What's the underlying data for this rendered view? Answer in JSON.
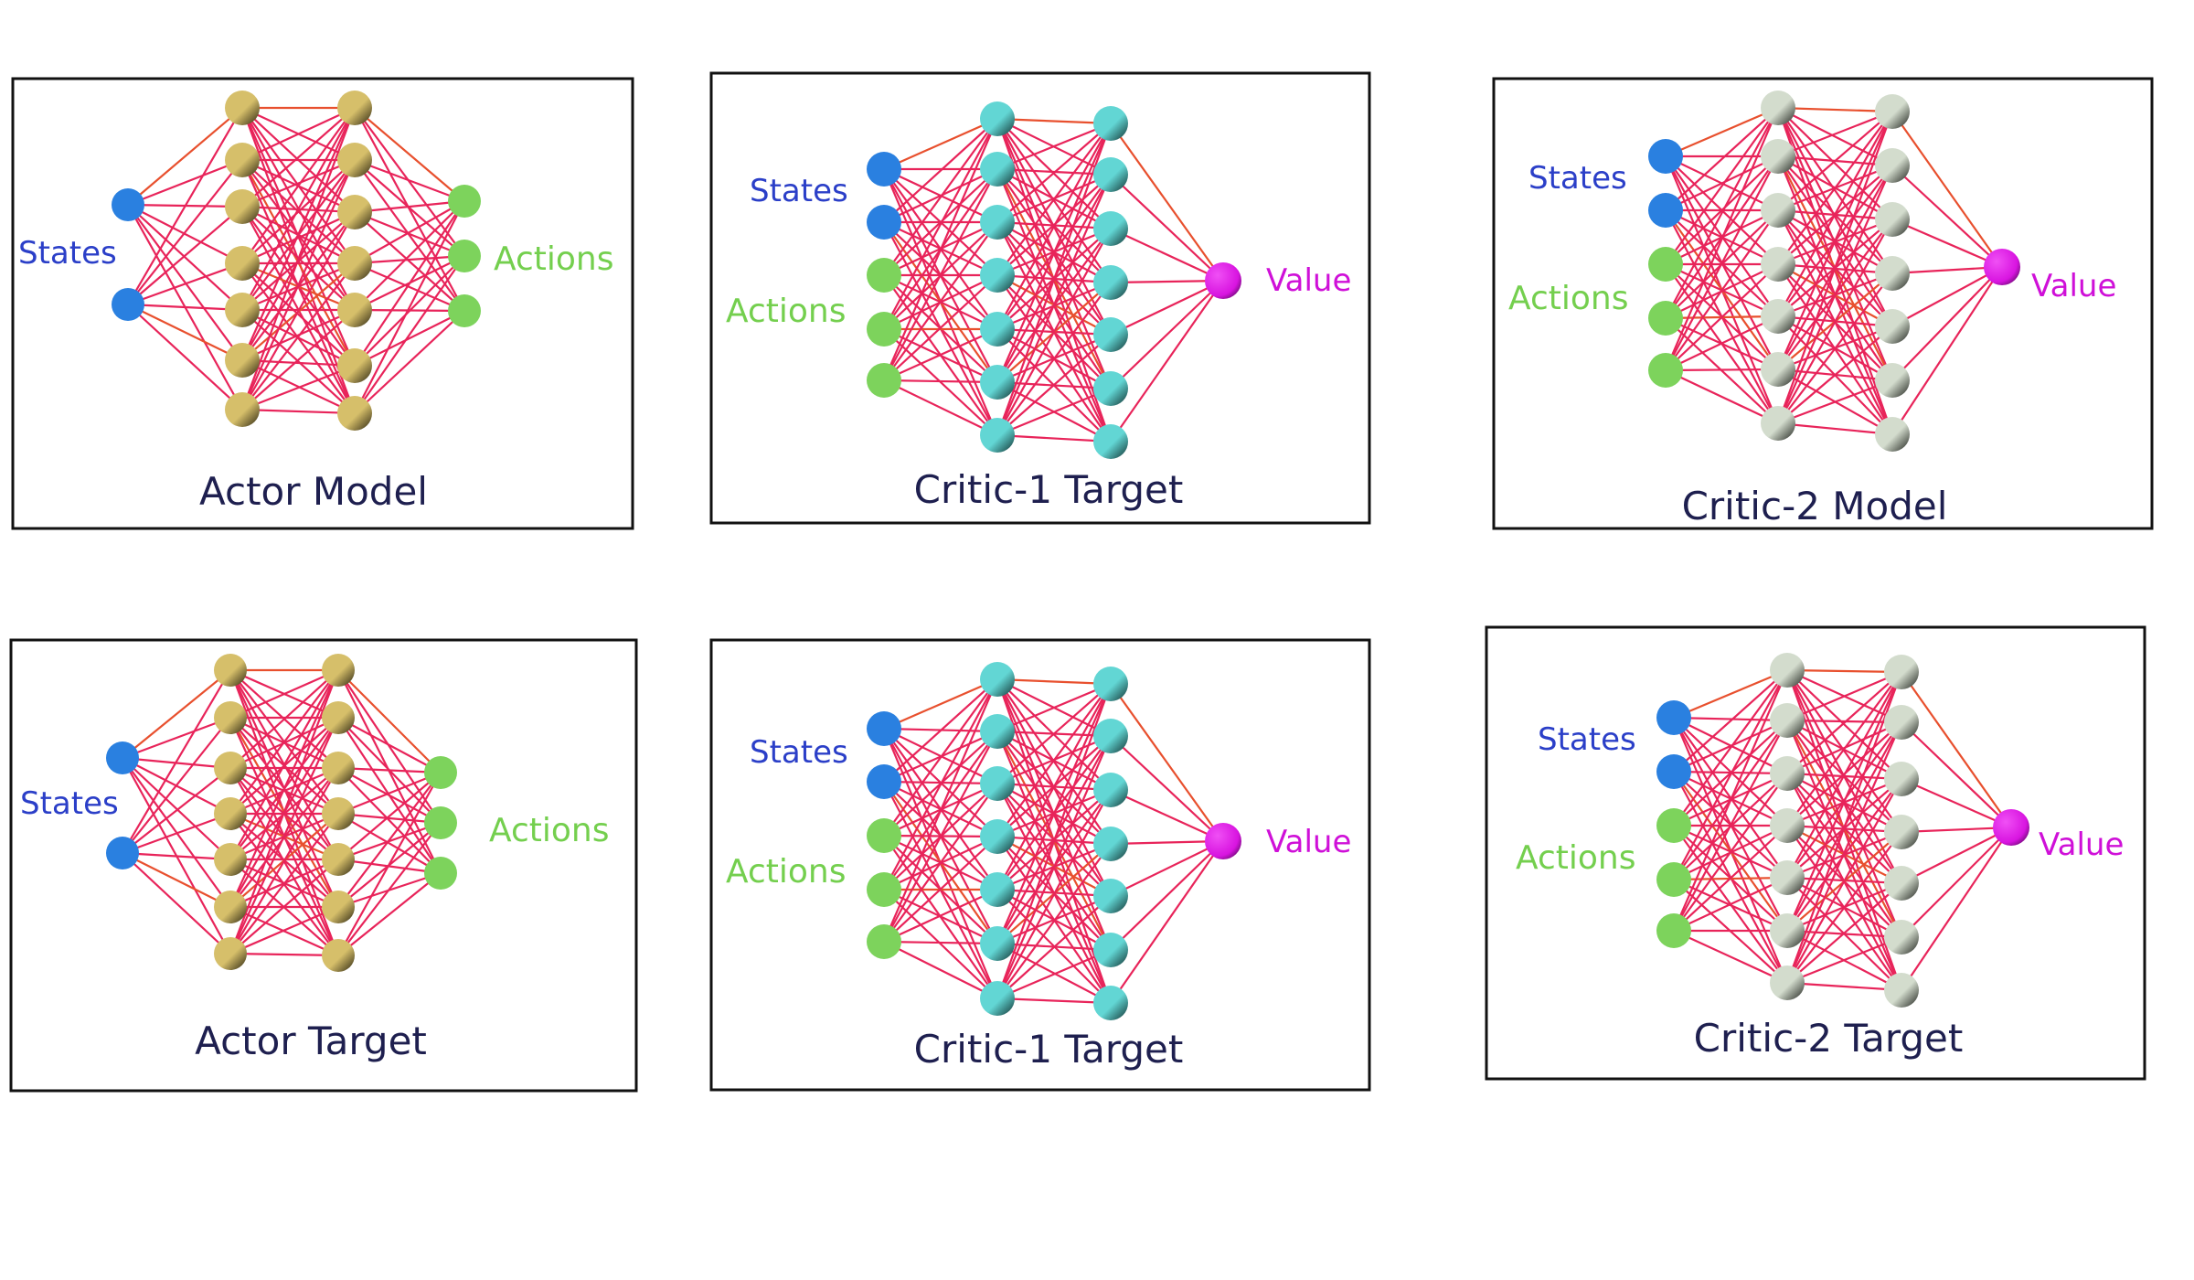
{
  "colors": {
    "frame": "#111111",
    "edge": "#e8245a",
    "edge_alt": "#e8502e",
    "state_node": "#2a80e0",
    "action_node": "#7dd35c",
    "value_node": "#d814e0",
    "title_text": "#1e1f4f",
    "states_text": "#2b3fc8",
    "actions_text": "#74cf4e",
    "value_text": "#cf10d8",
    "actor_hidden": "#d6bf6a",
    "critic1_hidden": "#62d6d4",
    "critic2_hidden": "#d3dccd"
  },
  "panels": [
    {
      "title": "Actor Model",
      "type": "actor",
      "labels": {
        "states": "States",
        "actions": "Actions"
      },
      "layers": {
        "inputs": [
          "state",
          "state"
        ],
        "hidden1": 7,
        "hidden2": 7,
        "outputs": 3
      }
    },
    {
      "title": "Critic-1  Target",
      "type": "critic",
      "labels": {
        "states": "States",
        "actions": "Actions",
        "value": "Value"
      },
      "layers": {
        "inputs": [
          "state",
          "state",
          "action",
          "action",
          "action"
        ],
        "hidden1": 7,
        "hidden2": 7,
        "outputs": 1
      }
    },
    {
      "title": "Critic-2  Model",
      "type": "critic",
      "labels": {
        "states": "States",
        "actions": "Actions",
        "value": "Value"
      },
      "layers": {
        "inputs": [
          "state",
          "state",
          "action",
          "action",
          "action"
        ],
        "hidden1": 7,
        "hidden2": 7,
        "outputs": 1
      }
    },
    {
      "title": "Actor Target",
      "type": "actor",
      "labels": {
        "states": "States",
        "actions": "Actions"
      },
      "layers": {
        "inputs": [
          "state",
          "state"
        ],
        "hidden1": 7,
        "hidden2": 7,
        "outputs": 3
      }
    },
    {
      "title": "Critic-1  Target",
      "type": "critic",
      "labels": {
        "states": "States",
        "actions": "Actions",
        "value": "Value"
      },
      "layers": {
        "inputs": [
          "state",
          "state",
          "action",
          "action",
          "action"
        ],
        "hidden1": 7,
        "hidden2": 7,
        "outputs": 1
      }
    },
    {
      "title": "Critic-2  Target",
      "type": "critic",
      "labels": {
        "states": "States",
        "actions": "Actions",
        "value": "Value"
      },
      "layers": {
        "inputs": [
          "state",
          "state",
          "action",
          "action",
          "action"
        ],
        "hidden1": 7,
        "hidden2": 7,
        "outputs": 1
      }
    }
  ]
}
